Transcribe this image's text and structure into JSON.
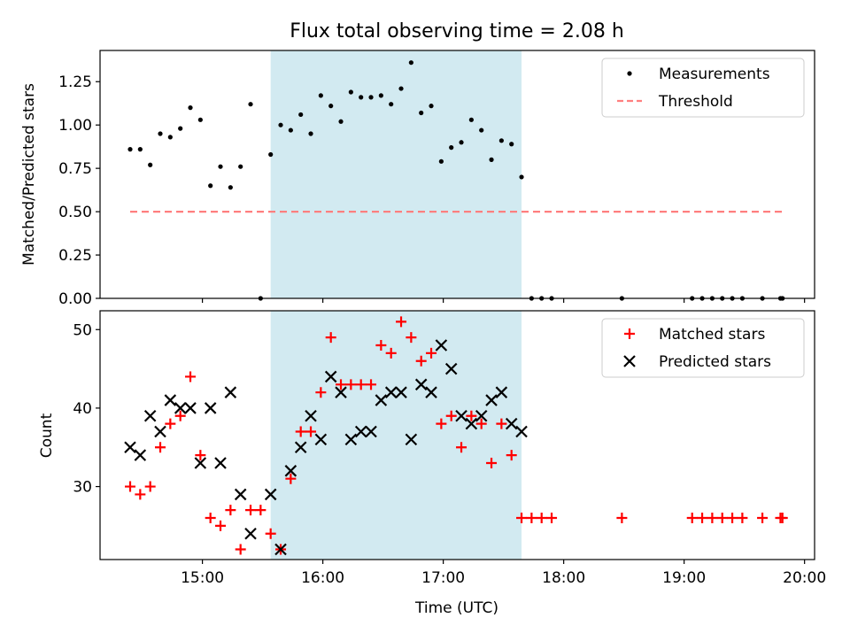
{
  "chart_data": {
    "title": "Flux total observing time = 2.08 h",
    "xlabel": "Time (UTC)",
    "x_ticks": [
      "15:00",
      "16:00",
      "17:00",
      "18:00",
      "19:00",
      "20:00"
    ],
    "shaded_span": {
      "start": "15:34",
      "end": "17:39",
      "color": "#add8e6"
    },
    "panels": [
      {
        "type": "scatter",
        "ylabel": "Matched/Predicted stars",
        "ylim": [
          0,
          1.43
        ],
        "y_ticks": [
          "0.00",
          "0.25",
          "0.50",
          "0.75",
          "1.00",
          "1.25"
        ],
        "legend_position": "upper-right",
        "series": [
          {
            "name": "Measurements",
            "marker": "dot",
            "color": "#000000",
            "points": [
              [
                "14:24",
                0.86
              ],
              [
                "14:29",
                0.86
              ],
              [
                "14:34",
                0.77
              ],
              [
                "14:39",
                0.95
              ],
              [
                "14:44",
                0.93
              ],
              [
                "14:49",
                0.98
              ],
              [
                "14:54",
                1.1
              ],
              [
                "14:59",
                1.03
              ],
              [
                "15:04",
                0.65
              ],
              [
                "15:09",
                0.76
              ],
              [
                "15:14",
                0.64
              ],
              [
                "15:19",
                0.76
              ],
              [
                "15:24",
                1.12
              ],
              [
                "15:29",
                0.0
              ],
              [
                "15:34",
                0.83
              ],
              [
                "15:39",
                1.0
              ],
              [
                "15:44",
                0.97
              ],
              [
                "15:49",
                1.06
              ],
              [
                "15:54",
                0.95
              ],
              [
                "15:59",
                1.17
              ],
              [
                "16:04",
                1.11
              ],
              [
                "16:09",
                1.02
              ],
              [
                "16:14",
                1.19
              ],
              [
                "16:19",
                1.16
              ],
              [
                "16:24",
                1.16
              ],
              [
                "16:29",
                1.17
              ],
              [
                "16:34",
                1.12
              ],
              [
                "16:39",
                1.21
              ],
              [
                "16:44",
                1.36
              ],
              [
                "16:49",
                1.07
              ],
              [
                "16:54",
                1.11
              ],
              [
                "16:59",
                0.79
              ],
              [
                "17:04",
                0.87
              ],
              [
                "17:09",
                0.9
              ],
              [
                "17:14",
                1.03
              ],
              [
                "17:19",
                0.97
              ],
              [
                "17:24",
                0.8
              ],
              [
                "17:29",
                0.91
              ],
              [
                "17:34",
                0.89
              ],
              [
                "17:39",
                0.7
              ],
              [
                "17:44",
                0.0
              ],
              [
                "17:49",
                0.0
              ],
              [
                "17:54",
                0.0
              ],
              [
                "18:29",
                0.0
              ],
              [
                "19:04",
                0.0
              ],
              [
                "19:09",
                0.0
              ],
              [
                "19:14",
                0.0
              ],
              [
                "19:19",
                0.0
              ],
              [
                "19:24",
                0.0
              ],
              [
                "19:29",
                0.0
              ],
              [
                "19:39",
                0.0
              ],
              [
                "19:48",
                0.0
              ],
              [
                "19:49",
                0.0
              ]
            ]
          },
          {
            "name": "Threshold",
            "marker": "dashed-line",
            "color": "#ff7f7f",
            "points": [
              [
                "14:24",
                0.5
              ],
              [
                "19:49",
                0.5
              ]
            ]
          }
        ]
      },
      {
        "type": "scatter",
        "ylabel": "Count",
        "ylim": [
          20.7,
          52.4
        ],
        "y_ticks": [
          "30",
          "40",
          "50"
        ],
        "legend_position": "upper-right",
        "series": [
          {
            "name": "Matched stars",
            "marker": "plus",
            "color": "#ff0000",
            "points": [
              [
                "14:24",
                30
              ],
              [
                "14:29",
                29
              ],
              [
                "14:34",
                30
              ],
              [
                "14:39",
                35
              ],
              [
                "14:44",
                38
              ],
              [
                "14:49",
                39
              ],
              [
                "14:54",
                44
              ],
              [
                "14:59",
                34
              ],
              [
                "15:04",
                26
              ],
              [
                "15:09",
                25
              ],
              [
                "15:14",
                27
              ],
              [
                "15:19",
                22
              ],
              [
                "15:24",
                27
              ],
              [
                "15:29",
                27
              ],
              [
                "15:34",
                24
              ],
              [
                "15:39",
                22
              ],
              [
                "15:44",
                31
              ],
              [
                "15:49",
                37
              ],
              [
                "15:54",
                37
              ],
              [
                "15:59",
                42
              ],
              [
                "16:04",
                49
              ],
              [
                "16:09",
                43
              ],
              [
                "16:14",
                43
              ],
              [
                "16:19",
                43
              ],
              [
                "16:24",
                43
              ],
              [
                "16:29",
                48
              ],
              [
                "16:34",
                47
              ],
              [
                "16:39",
                51
              ],
              [
                "16:44",
                49
              ],
              [
                "16:49",
                46
              ],
              [
                "16:54",
                47
              ],
              [
                "16:59",
                38
              ],
              [
                "17:04",
                39
              ],
              [
                "17:09",
                35
              ],
              [
                "17:14",
                39
              ],
              [
                "17:19",
                38
              ],
              [
                "17:24",
                33
              ],
              [
                "17:29",
                38
              ],
              [
                "17:34",
                34
              ],
              [
                "17:39",
                26
              ],
              [
                "17:44",
                26
              ],
              [
                "17:49",
                26
              ],
              [
                "17:54",
                26
              ],
              [
                "18:29",
                26
              ],
              [
                "19:04",
                26
              ],
              [
                "19:09",
                26
              ],
              [
                "19:14",
                26
              ],
              [
                "19:19",
                26
              ],
              [
                "19:24",
                26
              ],
              [
                "19:29",
                26
              ],
              [
                "19:39",
                26
              ],
              [
                "19:48",
                26
              ],
              [
                "19:49",
                26
              ]
            ]
          },
          {
            "name": "Predicted stars",
            "marker": "x",
            "color": "#000000",
            "points": [
              [
                "14:24",
                35
              ],
              [
                "14:29",
                34
              ],
              [
                "14:34",
                39
              ],
              [
                "14:39",
                37
              ],
              [
                "14:44",
                41
              ],
              [
                "14:49",
                40
              ],
              [
                "14:54",
                40
              ],
              [
                "14:59",
                33
              ],
              [
                "15:04",
                40
              ],
              [
                "15:09",
                33
              ],
              [
                "15:14",
                42
              ],
              [
                "15:19",
                29
              ],
              [
                "15:24",
                24
              ],
              [
                "15:34",
                29
              ],
              [
                "15:39",
                22
              ],
              [
                "15:44",
                32
              ],
              [
                "15:49",
                35
              ],
              [
                "15:54",
                39
              ],
              [
                "15:59",
                36
              ],
              [
                "16:04",
                44
              ],
              [
                "16:09",
                42
              ],
              [
                "16:14",
                36
              ],
              [
                "16:19",
                37
              ],
              [
                "16:24",
                37
              ],
              [
                "16:29",
                41
              ],
              [
                "16:34",
                42
              ],
              [
                "16:39",
                42
              ],
              [
                "16:44",
                36
              ],
              [
                "16:49",
                43
              ],
              [
                "16:54",
                42
              ],
              [
                "16:59",
                48
              ],
              [
                "17:04",
                45
              ],
              [
                "17:09",
                39
              ],
              [
                "17:14",
                38
              ],
              [
                "17:19",
                39
              ],
              [
                "17:24",
                41
              ],
              [
                "17:29",
                42
              ],
              [
                "17:34",
                38
              ],
              [
                "17:39",
                37
              ]
            ]
          }
        ]
      }
    ]
  }
}
